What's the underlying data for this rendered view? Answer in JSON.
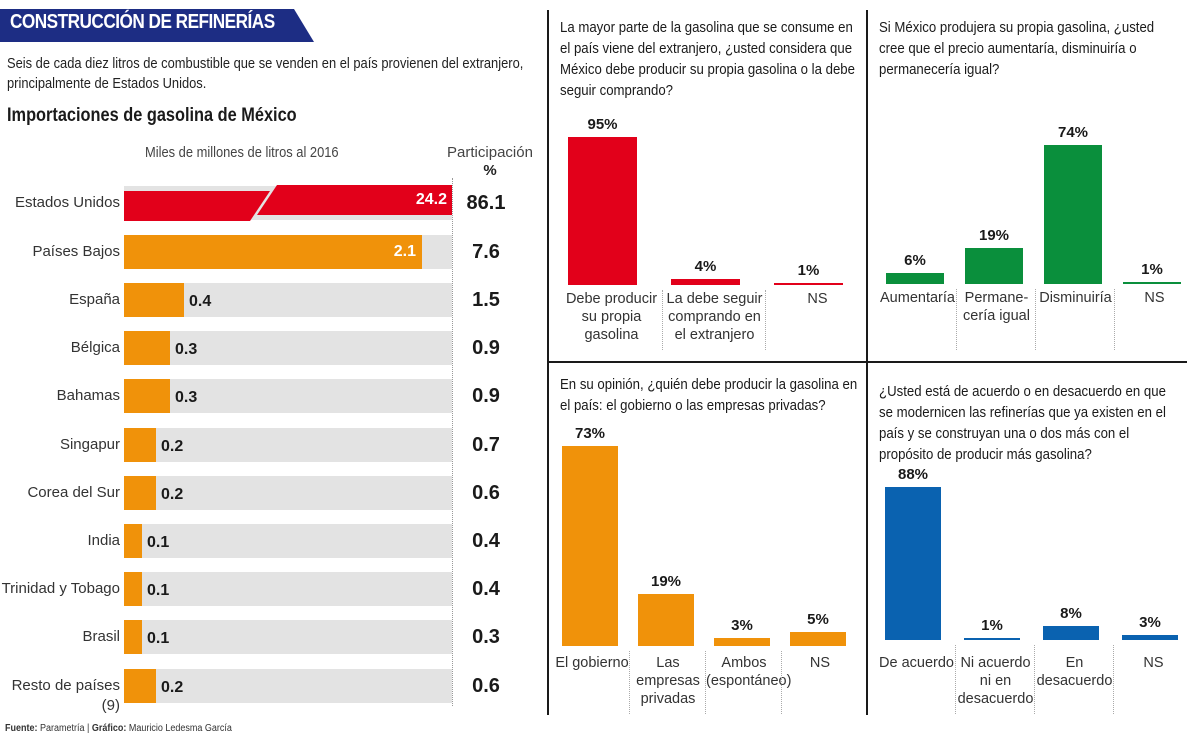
{
  "header": {
    "title": "CONSTRUCCIÓN DE REFINERÍAS",
    "subtitle": "Seis de cada diez litros de combustible que se venden en el país provienen del extranjero, principalmente de Estados Unidos.",
    "colors": {
      "banner": "#1d2d84"
    }
  },
  "footer": {
    "source_label": "Fuente:",
    "source_value": "Parametría |",
    "graphic_label": "Gráfico:",
    "graphic_value": "Mauricio Ledesma García"
  },
  "chart_data": [
    {
      "type": "bar",
      "orientation": "horizontal",
      "title": "Importaciones de gasolina de México",
      "xlabel": "Miles de millones de litros al 2016",
      "secondary_column_label": "Participación",
      "secondary_column_unit": "%",
      "categories": [
        "Estados Unidos",
        "Países Bajos",
        "España",
        "Bélgica",
        "Bahamas",
        "Singapur",
        "Corea del Sur",
        "India",
        "Trinidad y Tobago",
        "Brasil",
        "Resto de países (9)"
      ],
      "values": [
        24.2,
        2.1,
        0.4,
        0.3,
        0.3,
        0.2,
        0.2,
        0.1,
        0.1,
        0.1,
        0.2
      ],
      "value_labels": [
        "24.2",
        "2.1",
        "0.4",
        "0.3",
        "0.3",
        "0.2",
        "0.2",
        "0.1",
        "0.1",
        "0.1",
        "0.2"
      ],
      "share_percent": [
        86.1,
        7.6,
        1.5,
        0.9,
        0.9,
        0.7,
        0.6,
        0.4,
        0.4,
        0.3,
        0.6
      ],
      "share_labels": [
        "86.1",
        "7.6",
        "1.5",
        "0.9",
        "0.9",
        "0.7",
        "0.6",
        "0.4",
        "0.4",
        "0.3",
        "0.6"
      ],
      "broken_axis_category": "Estados Unidos",
      "colors": {
        "highlight": "#e2001a",
        "default": "#f0920a",
        "track": "#e3e3e3"
      }
    },
    {
      "type": "bar",
      "title": "La mayor parte de la gasolina que se consume en el país viene del extranjero, ¿usted considera que México debe producir su propia gasolina o la debe seguir comprando?",
      "categories": [
        "Debe producir su propia gasolina",
        "La debe seguir comprando en el extranjero",
        "NS"
      ],
      "values": [
        95,
        4,
        1
      ],
      "value_labels": [
        "95%",
        "4%",
        "1%"
      ],
      "ylim": [
        0,
        100
      ],
      "color": "#e2001a"
    },
    {
      "type": "bar",
      "title": "Si México produjera su propia gasolina, ¿usted cree que el precio aumentaría, disminuiría o permanecería igual?",
      "categories": [
        "Aumentaría",
        "Permane-ría igual",
        "Disminuiría",
        "NS"
      ],
      "values": [
        6,
        19,
        74,
        1
      ],
      "value_labels": [
        "6%",
        "19%",
        "74%",
        "1%"
      ],
      "ylim": [
        0,
        100
      ],
      "color": "#0a8f3c"
    },
    {
      "type": "bar",
      "title": "En su opinión, ¿quién debe producir la gasolina en el país: el gobierno o las empresas privadas?",
      "categories": [
        "El gobierno",
        "Las empresas privadas",
        "Ambos (espontáneo)",
        "NS"
      ],
      "values": [
        73,
        19,
        3,
        5
      ],
      "value_labels": [
        "73%",
        "19%",
        "3%",
        "5%"
      ],
      "ylim": [
        0,
        100
      ],
      "color": "#f0920a"
    },
    {
      "type": "bar",
      "title": "¿Usted está de acuerdo o en desacuerdo en que se modernicen las refinerías que ya existen en el país y se construyan una o dos más con el propósito de producir más gasolina?",
      "categories": [
        "De acuerdo",
        "Ni acuerdo ni en desacuerdo",
        "En desacuerdo",
        "NS"
      ],
      "values": [
        88,
        1,
        8,
        3
      ],
      "value_labels": [
        "88%",
        "1%",
        "8%",
        "3%"
      ],
      "ylim": [
        0,
        100
      ],
      "color": "#0a62b0"
    }
  ],
  "panels": [
    {
      "question": "La mayor parte de la gasolina que se consume en el país viene del extranjero, ¿usted considera que México debe producir su propia gasolina o la debe seguir comprando?",
      "labels": [
        "Debe producir\nsu propia\ngasolina",
        "La debe seguir\ncomprando en\nel extranjero",
        "NS"
      ]
    },
    {
      "question": "Si México produjera su propia gasolina, ¿usted cree que el precio aumentaría, disminuiría o permanecería igual?",
      "labels": [
        "Aumentaría",
        "Permane-\ncería igual",
        "Disminuiría",
        "NS"
      ]
    },
    {
      "question": "En su opinión, ¿quién debe producir la gasolina en el país: el gobierno o las empresas privadas?",
      "labels": [
        "El gobierno",
        "Las\nempresas\nprivadas",
        "Ambos\n(espontáneo)",
        "NS"
      ]
    },
    {
      "question": "¿Usted está de acuerdo o en desacuerdo en que se modernicen las refinerías que ya existen en el país y se construyan una o dos más con el propósito de producir más gasolina?",
      "labels": [
        "De acuerdo",
        "Ni acuerdo\nni en\ndesacuerdo",
        "En\ndesacuerdo",
        "NS"
      ]
    }
  ]
}
